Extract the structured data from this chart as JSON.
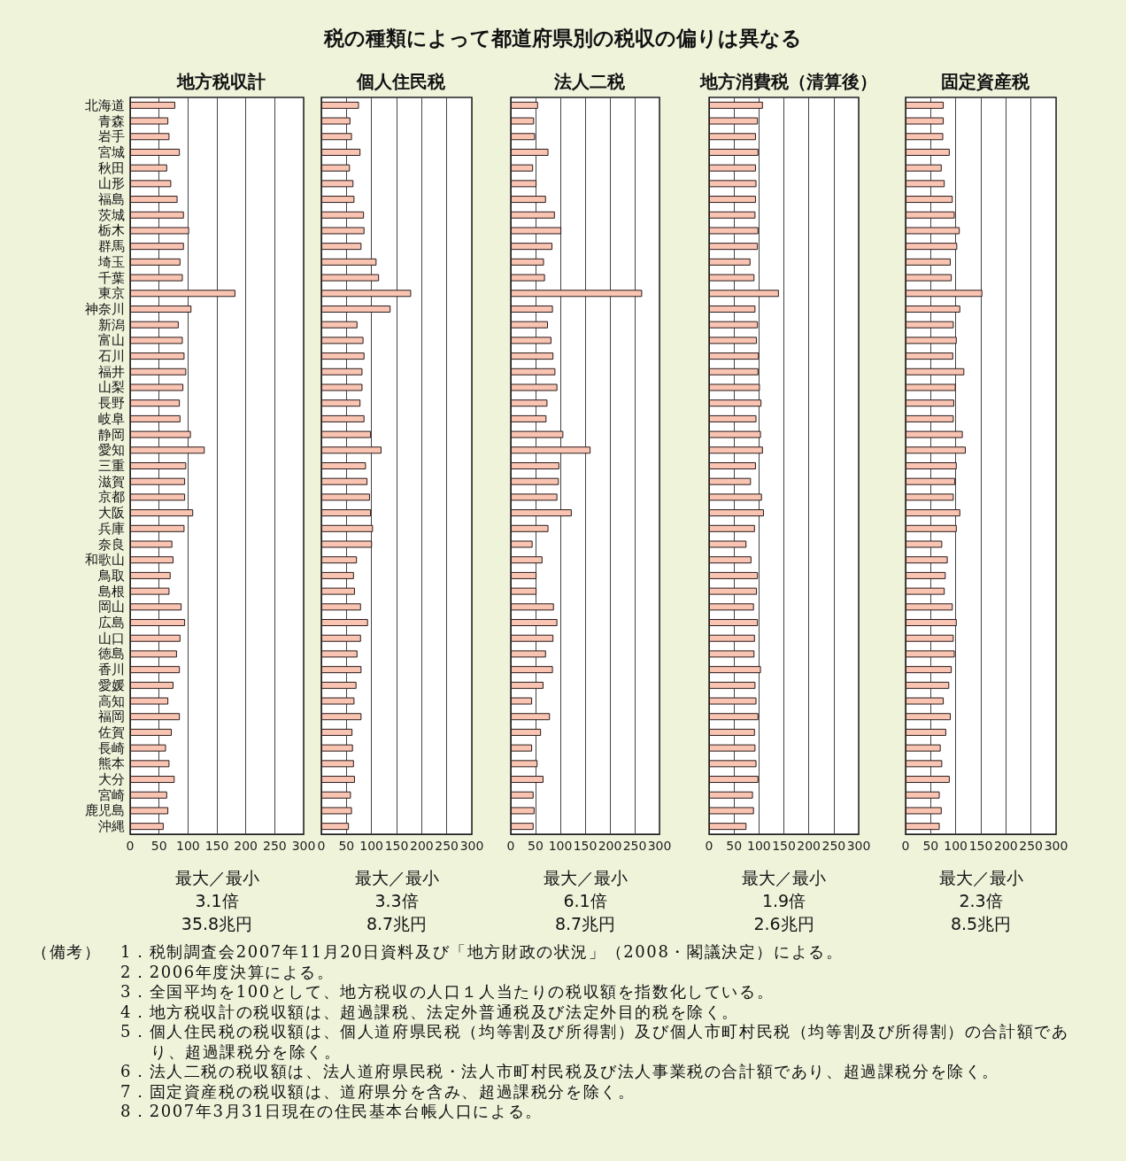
{
  "chart_data": [
    {
      "type": "other",
      "title": "税の種類によって都道府県別の税収の偏りは異なる"
    },
    {
      "type": "bar",
      "orientation": "horizontal",
      "title": "地方税収計",
      "categories": [
        "北海道",
        "青森",
        "岩手",
        "宮城",
        "秋田",
        "山形",
        "福島",
        "茨城",
        "栃木",
        "群馬",
        "埼玉",
        "千葉",
        "東京",
        "神奈川",
        "新潟",
        "富山",
        "石川",
        "福井",
        "山梨",
        "長野",
        "岐阜",
        "静岡",
        "愛知",
        "三重",
        "滋賀",
        "京都",
        "大阪",
        "兵庫",
        "奈良",
        "和歌山",
        "鳥取",
        "島根",
        "岡山",
        "広島",
        "山口",
        "徳島",
        "香川",
        "愛媛",
        "高知",
        "福岡",
        "佐賀",
        "長崎",
        "熊本",
        "大分",
        "宮崎",
        "鹿児島",
        "沖縄"
      ],
      "values": [
        78,
        66,
        68,
        86,
        64,
        71,
        82,
        93,
        102,
        93,
        87,
        91,
        182,
        106,
        84,
        91,
        94,
        97,
        92,
        86,
        87,
        105,
        129,
        97,
        95,
        95,
        109,
        94,
        73,
        75,
        70,
        68,
        89,
        95,
        87,
        81,
        86,
        75,
        66,
        86,
        72,
        62,
        68,
        77,
        64,
        66,
        58
      ],
      "color": "#f9c4b2",
      "xlim": [
        0,
        300
      ],
      "xticks": [
        0,
        50,
        100,
        150,
        200,
        250,
        300
      ],
      "grid": "x",
      "annotations": [
        "最大／最小",
        "3.1倍",
        "35.8兆円"
      ]
    },
    {
      "type": "bar",
      "orientation": "horizontal",
      "title": "個人住民税",
      "categories": [
        null,
        null,
        null,
        null,
        null,
        null,
        null,
        null,
        null,
        null,
        null,
        null,
        null,
        null,
        null,
        null,
        null,
        null,
        null,
        null,
        null,
        null,
        null,
        null,
        null,
        null,
        null,
        null,
        null,
        null,
        null,
        null,
        null,
        null,
        null,
        null,
        null,
        null,
        null,
        null,
        null,
        null,
        null,
        null,
        null,
        null,
        null
      ],
      "values": [
        75,
        58,
        61,
        78,
        57,
        64,
        66,
        85,
        86,
        80,
        110,
        115,
        179,
        138,
        72,
        84,
        86,
        82,
        82,
        78,
        86,
        99,
        120,
        89,
        92,
        97,
        99,
        103,
        101,
        71,
        65,
        67,
        79,
        93,
        79,
        72,
        80,
        70,
        66,
        80,
        62,
        63,
        65,
        67,
        59,
        61,
        55
      ],
      "color": "#f9c4b2",
      "xlim": [
        0,
        300
      ],
      "xticks": [
        0,
        50,
        100,
        150,
        200,
        250,
        300
      ],
      "grid": "x",
      "tick_labels": "x",
      "annotations": [
        "最大／最小",
        "3.3倍",
        "8.7兆円"
      ]
    },
    {
      "type": "bar",
      "orientation": "horizontal",
      "title": "法人二税",
      "categories": [
        null,
        null,
        null,
        null,
        null,
        null,
        null,
        null,
        null,
        null,
        null,
        null,
        null,
        null,
        null,
        null,
        null,
        null,
        null,
        null,
        null,
        null,
        null,
        null,
        null,
        null,
        null,
        null,
        null,
        null,
        null,
        null,
        null,
        null,
        null,
        null,
        null,
        null,
        null,
        null,
        null,
        null,
        null,
        null,
        null,
        null,
        null
      ],
      "values": [
        55,
        47,
        49,
        76,
        45,
        52,
        71,
        89,
        102,
        84,
        67,
        69,
        265,
        85,
        75,
        82,
        86,
        90,
        94,
        74,
        72,
        106,
        161,
        98,
        97,
        94,
        123,
        76,
        44,
        64,
        52,
        52,
        87,
        94,
        86,
        71,
        85,
        66,
        43,
        79,
        61,
        43,
        54,
        66,
        46,
        48,
        46
      ],
      "color": "#f9c4b2",
      "xlim": [
        0,
        300
      ],
      "xticks": [
        0,
        50,
        100,
        150,
        200,
        250,
        300
      ],
      "grid": "x",
      "tick_labels": "x",
      "annotations": [
        "最大／最小",
        "6.1倍",
        "8.7兆円"
      ]
    },
    {
      "type": "bar",
      "orientation": "horizontal",
      "title": "地方消費税（清算後）",
      "categories": [
        null,
        null,
        null,
        null,
        null,
        null,
        null,
        null,
        null,
        null,
        null,
        null,
        null,
        null,
        null,
        null,
        null,
        null,
        null,
        null,
        null,
        null,
        null,
        null,
        null,
        null,
        null,
        null,
        null,
        null,
        null,
        null,
        null,
        null,
        null,
        null,
        null,
        null,
        null,
        null,
        null,
        null,
        null,
        null,
        null,
        null,
        null
      ],
      "values": [
        108,
        98,
        94,
        99,
        94,
        95,
        94,
        93,
        99,
        98,
        83,
        91,
        140,
        93,
        98,
        96,
        100,
        99,
        102,
        105,
        95,
        104,
        108,
        94,
        84,
        106,
        110,
        92,
        75,
        85,
        98,
        96,
        90,
        98,
        92,
        91,
        104,
        93,
        95,
        99,
        92,
        93,
        95,
        99,
        88,
        90,
        75
      ],
      "color": "#f9c4b2",
      "xlim": [
        0,
        300
      ],
      "xticks": [
        0,
        50,
        100,
        150,
        200,
        250,
        300
      ],
      "grid": "x",
      "tick_labels": "x",
      "annotations": [
        "最大／最小",
        "1.9倍",
        "2.6兆円"
      ]
    },
    {
      "type": "bar",
      "orientation": "horizontal",
      "title": "固定資産税",
      "categories": [
        null,
        null,
        null,
        null,
        null,
        null,
        null,
        null,
        null,
        null,
        null,
        null,
        null,
        null,
        null,
        null,
        null,
        null,
        null,
        null,
        null,
        null,
        null,
        null,
        null,
        null,
        null,
        null,
        null,
        null,
        null,
        null,
        null,
        null,
        null,
        null,
        null,
        null,
        null,
        null,
        null,
        null,
        null,
        null,
        null,
        null,
        null
      ],
      "values": [
        76,
        76,
        75,
        88,
        72,
        78,
        94,
        98,
        108,
        103,
        90,
        92,
        153,
        109,
        96,
        102,
        95,
        117,
        100,
        97,
        96,
        114,
        120,
        102,
        99,
        96,
        109,
        102,
        73,
        84,
        80,
        78,
        94,
        102,
        96,
        98,
        92,
        87,
        76,
        90,
        81,
        70,
        73,
        88,
        68,
        72,
        68
      ],
      "color": "#f9c4b2",
      "xlim": [
        0,
        300
      ],
      "xticks": [
        0,
        50,
        100,
        150,
        200,
        250,
        300
      ],
      "grid": "x",
      "tick_labels": "x",
      "annotations": [
        "最大／最小",
        "2.3倍",
        "8.5兆円"
      ]
    },
    {
      "type": "other",
      "title": "（備考）",
      "annotations": [
        "1．税制調査会2007年11月20日資料及び「地方財政の状況」（2008・閣議決定）による。",
        "2．2006年度決算による。",
        "3．全国平均を100として、地方税収の人口１人当たりの税収額を指数化している。",
        "4．地方税収計の税収額は、超過課税、法定外普通税及び法定外目的税を除く。",
        "5．個人住民税の税収額は、個人道府県民税（均等割及び所得割）及び個人市町村民税（均等割及び所得割）の合計額であり、超過課税分を除く。",
        "6．法人二税の税収額は、法人道府県民税・法人市町村民税及び法人事業税の合計額であり、超過課税分を除く。",
        "7．固定資産税の税収額は、道府県分を含み、超過課税分を除く。",
        "8．2007年3月31日現在の住民基本台帳人口による。"
      ]
    }
  ]
}
